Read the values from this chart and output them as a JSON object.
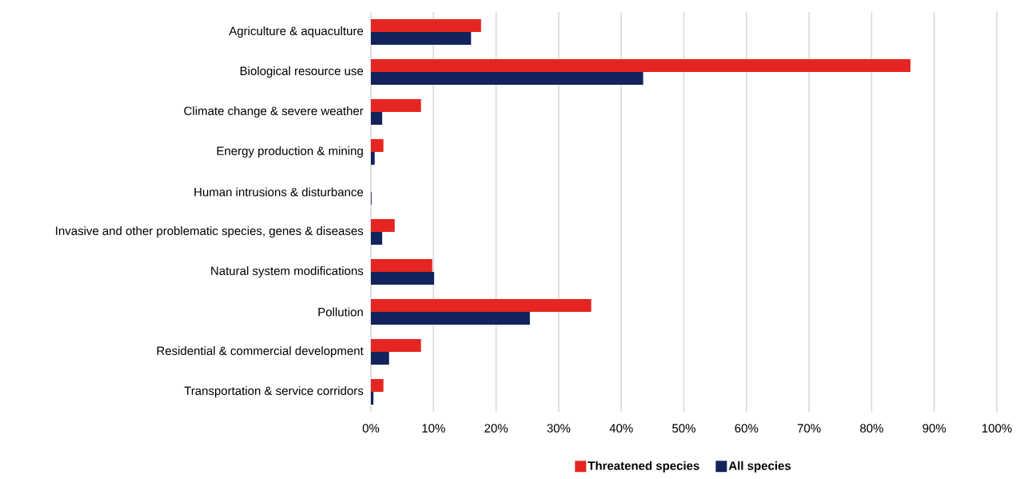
{
  "chart_data": {
    "type": "bar",
    "orientation": "horizontal",
    "categories": [
      "Agriculture & aquaculture",
      "Biological resource use",
      "Climate change & severe weather",
      "Energy production & mining",
      "Human intrusions & disturbance",
      "Invasive and other problematic species, genes & diseases",
      "Natural system modifications",
      "Pollution",
      "Residential & commercial development",
      "Transportation & service corridors"
    ],
    "series": [
      {
        "name": "Threatened species",
        "color": "#e52521",
        "values": [
          17.6,
          86.2,
          8.0,
          2.0,
          0,
          3.8,
          9.8,
          35.2,
          8.0,
          2.0
        ]
      },
      {
        "name": "All species",
        "color": "#13235b",
        "values": [
          16.0,
          43.5,
          1.8,
          0.6,
          0.1,
          1.8,
          10.1,
          25.4,
          2.9,
          0.4
        ]
      }
    ],
    "xlim": [
      0,
      100
    ],
    "xticks": [
      {
        "value": 0,
        "label": "0%"
      },
      {
        "value": 10,
        "label": "10%"
      },
      {
        "value": 20,
        "label": "20%"
      },
      {
        "value": 30,
        "label": "30%"
      },
      {
        "value": 40,
        "label": "40%"
      },
      {
        "value": 50,
        "label": "50%"
      },
      {
        "value": 60,
        "label": "60%"
      },
      {
        "value": 70,
        "label": "70%"
      },
      {
        "value": 80,
        "label": "80%"
      },
      {
        "value": 90,
        "label": "90%"
      },
      {
        "value": 100,
        "label": "100%"
      }
    ],
    "grid": "x",
    "legend": "bottom"
  }
}
